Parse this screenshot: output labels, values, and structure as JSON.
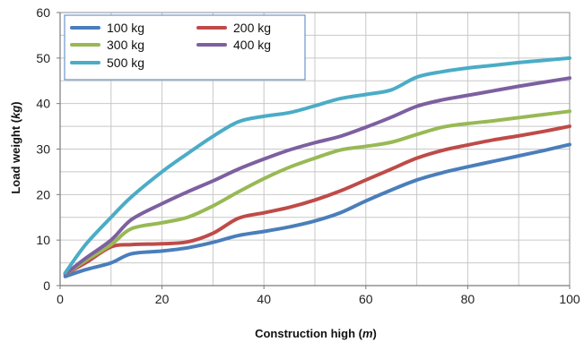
{
  "chart_data": {
    "type": "line",
    "xlabel": "Construction high (m)",
    "xlabel_main": "Construction high",
    "xlabel_unit": "m",
    "ylabel": "Load weight (kg)",
    "ylabel_main": "Load weight",
    "ylabel_unit": "kg",
    "xlim": [
      0,
      100
    ],
    "ylim": [
      0,
      60
    ],
    "xticks": [
      0,
      20,
      40,
      60,
      80,
      100
    ],
    "yticks": [
      0,
      10,
      20,
      30,
      40,
      50,
      60
    ],
    "grid": true,
    "legend_position": "top-left",
    "x": [
      1,
      5,
      10,
      14,
      20,
      25,
      30,
      35,
      40,
      45,
      50,
      55,
      60,
      65,
      70,
      75,
      80,
      85,
      90,
      95,
      100
    ],
    "series": [
      {
        "name": "100 kg",
        "color": "#4a7ebb",
        "values": [
          2,
          3.5,
          5,
          7,
          7.6,
          8.3,
          9.5,
          11,
          11.9,
          12.9,
          14.2,
          16,
          18.6,
          21,
          23.2,
          24.8,
          26.1,
          27.3,
          28.5,
          29.7,
          31
        ]
      },
      {
        "name": "200 kg",
        "color": "#be4b48",
        "values": [
          2.5,
          5,
          8.5,
          9,
          9.2,
          9.6,
          11.5,
          14.8,
          16,
          17.2,
          18.8,
          20.8,
          23.2,
          25.6,
          28,
          29.7,
          30.9,
          32,
          32.9,
          33.9,
          35
        ]
      },
      {
        "name": "300 kg",
        "color": "#98b954",
        "values": [
          2.5,
          5.5,
          9,
          12.5,
          13.8,
          15,
          17.5,
          20.6,
          23.5,
          26,
          28,
          29.8,
          30.6,
          31.5,
          33.2,
          34.8,
          35.6,
          36.2,
          36.9,
          37.6,
          38.3
        ]
      },
      {
        "name": "400 kg",
        "color": "#7d60a0",
        "values": [
          2.5,
          6,
          10,
          14.5,
          18,
          20.6,
          23,
          25.6,
          27.8,
          29.8,
          31.4,
          32.8,
          34.8,
          37,
          39.4,
          40.8,
          41.8,
          42.8,
          43.8,
          44.7,
          45.6
        ]
      },
      {
        "name": "500 kg",
        "color": "#4bacc6",
        "values": [
          2.8,
          9,
          15,
          19.5,
          25,
          29,
          32.8,
          36,
          37.2,
          38,
          39.5,
          41.1,
          42,
          43,
          45.8,
          47,
          47.8,
          48.4,
          49,
          49.5,
          50
        ]
      }
    ]
  }
}
